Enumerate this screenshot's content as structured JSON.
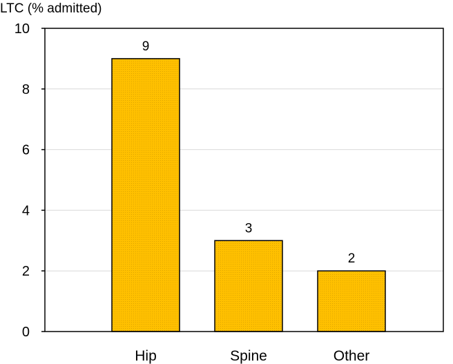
{
  "chart_data": {
    "type": "bar",
    "title": "",
    "xlabel": "",
    "ylabel": "LTC (% admitted)",
    "categories": [
      "Hip",
      "Spine",
      "Other"
    ],
    "values": [
      9,
      3,
      2
    ],
    "data_labels": [
      "9",
      "3",
      "2"
    ],
    "ylim": [
      0,
      10
    ],
    "yticks": [
      0,
      2,
      4,
      6,
      8,
      10
    ],
    "ytick_labels": [
      "0",
      "2",
      "4",
      "6",
      "8",
      "10"
    ],
    "grid": true,
    "legend": "none",
    "bar_color": "#FFC000",
    "bar_edge_color": "#000000",
    "grid_color": "#D9D9D9"
  }
}
